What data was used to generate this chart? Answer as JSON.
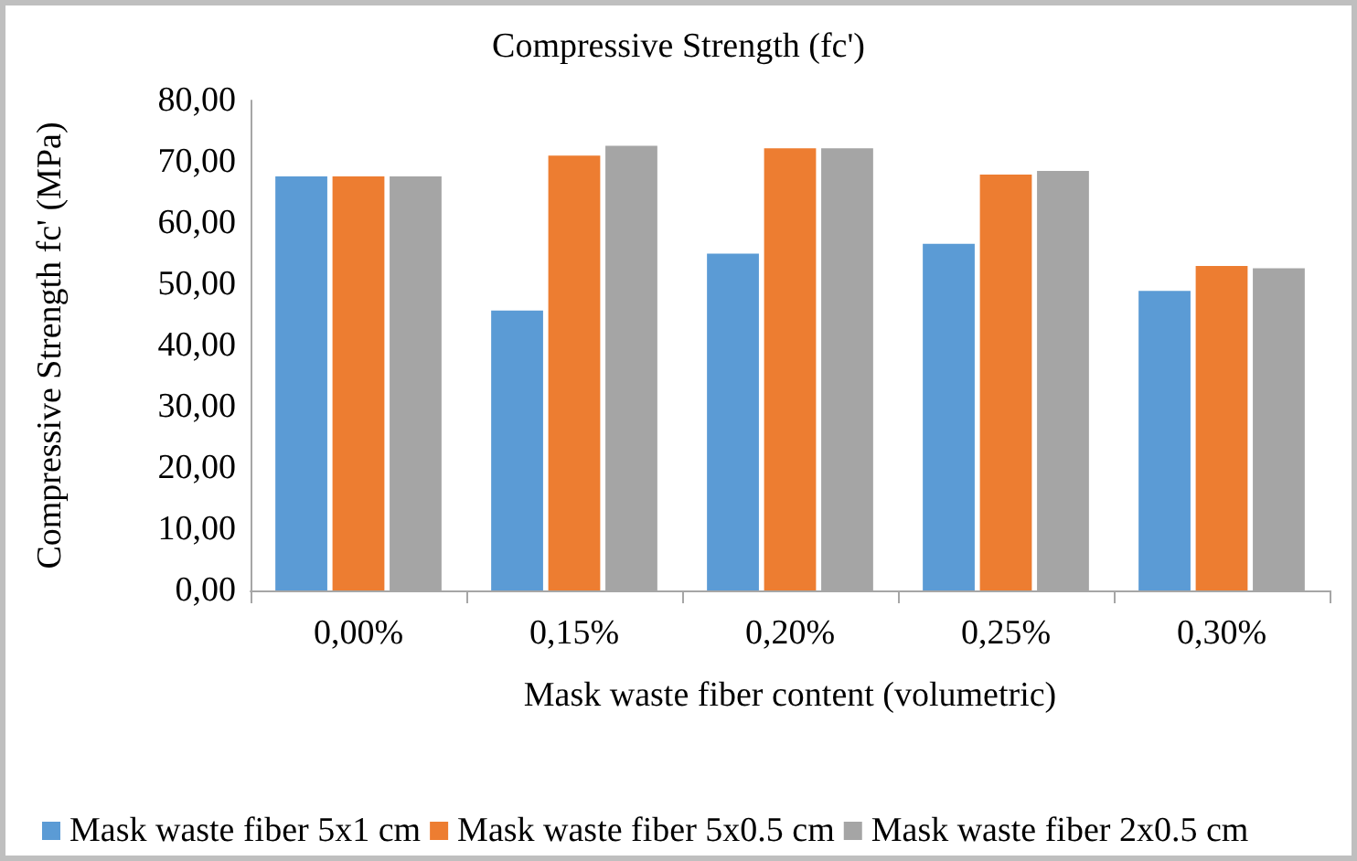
{
  "chart_data": {
    "type": "bar",
    "title": "Compressive Strength (fc')",
    "xlabel": "Mask waste fiber content (volumetric)",
    "ylabel": "Compressive Strength fc' (MPa)",
    "categories": [
      "0,00%",
      "0,15%",
      "0,20%",
      "0,25%",
      "0,30%"
    ],
    "series": [
      {
        "name": "Mask waste fiber 5x1 cm",
        "color": "#5b9bd5",
        "values": [
          67.6,
          45.7,
          55.0,
          56.6,
          48.9
        ]
      },
      {
        "name": "Mask waste fiber 5x0.5 cm",
        "color": "#ed7d31",
        "values": [
          67.6,
          71.0,
          72.2,
          67.9,
          53.0
        ]
      },
      {
        "name": "Mask waste fiber 2x0.5 cm",
        "color": "#a5a5a5",
        "values": [
          67.6,
          72.6,
          72.2,
          68.5,
          52.6
        ]
      }
    ],
    "ylim": [
      0,
      80
    ],
    "yticks": [
      {
        "value": 0,
        "label": "0,00"
      },
      {
        "value": 10,
        "label": "10,00"
      },
      {
        "value": 20,
        "label": "20,00"
      },
      {
        "value": 30,
        "label": "30,00"
      },
      {
        "value": 40,
        "label": "40,00"
      },
      {
        "value": 50,
        "label": "50,00"
      },
      {
        "value": 60,
        "label": "60,00"
      },
      {
        "value": 70,
        "label": "70,00"
      },
      {
        "value": 80,
        "label": "80,00"
      }
    ],
    "grid": false,
    "legend": "bottom"
  }
}
